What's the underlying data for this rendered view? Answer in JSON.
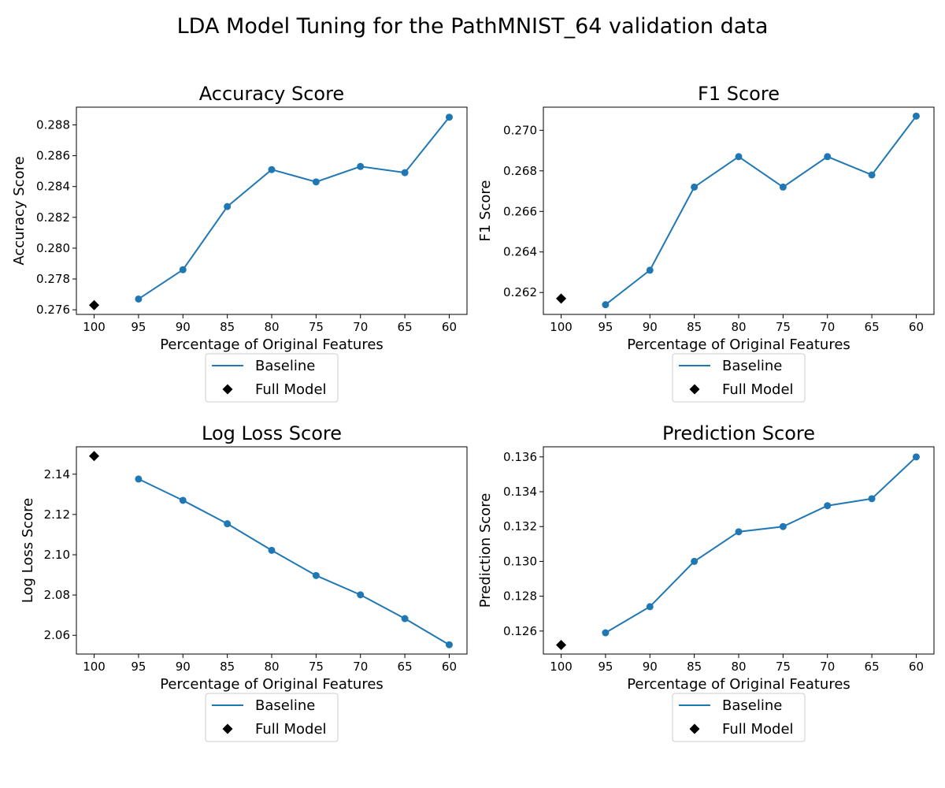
{
  "figure": {
    "title": "LDA Model Tuning for the PathMNIST_64 validation data"
  },
  "legend": {
    "baseline_label": "Baseline",
    "full_label": "Full Model"
  },
  "colors": {
    "baseline": "#1f77b4",
    "full_model": "#000000"
  },
  "chart_data": [
    {
      "type": "line",
      "title": "Accuracy Score",
      "xlabel": "Percentage of Original Features",
      "ylabel": "Accuracy Score",
      "x_ticks": [
        "100",
        "95",
        "90",
        "85",
        "80",
        "75",
        "70",
        "65",
        "60"
      ],
      "y_ticks": [
        "0.276",
        "0.278",
        "0.280",
        "0.282",
        "0.284",
        "0.286",
        "0.288"
      ],
      "ylim": [
        0.2757,
        0.28915
      ],
      "series": [
        {
          "name": "Baseline",
          "x": [
            95,
            90,
            85,
            80,
            75,
            70,
            65,
            60
          ],
          "values": [
            0.2767,
            0.2786,
            0.2827,
            0.2851,
            0.2843,
            0.2853,
            0.2849,
            0.2885
          ]
        },
        {
          "name": "Full Model",
          "x": [
            100
          ],
          "values": [
            0.2763
          ]
        }
      ],
      "legend_position": "below"
    },
    {
      "type": "line",
      "title": "F1 Score",
      "xlabel": "Percentage of Original Features",
      "ylabel": "F1 Score",
      "x_ticks": [
        "100",
        "95",
        "90",
        "85",
        "80",
        "75",
        "70",
        "65",
        "60"
      ],
      "y_ticks": [
        "0.262",
        "0.264",
        "0.266",
        "0.268",
        "0.270"
      ],
      "ylim": [
        0.26092,
        0.27114
      ],
      "series": [
        {
          "name": "Baseline",
          "x": [
            95,
            90,
            85,
            80,
            75,
            70,
            65,
            60
          ],
          "values": [
            0.2614,
            0.2631,
            0.2672,
            0.2687,
            0.2672,
            0.2687,
            0.2678,
            0.2707
          ]
        },
        {
          "name": "Full Model",
          "x": [
            100
          ],
          "values": [
            0.2617
          ]
        }
      ],
      "legend_position": "below"
    },
    {
      "type": "line",
      "title": "Log Loss Score",
      "xlabel": "Percentage of Original Features",
      "ylabel": "Log Loss Score",
      "x_ticks": [
        "100",
        "95",
        "90",
        "85",
        "80",
        "75",
        "70",
        "65",
        "60"
      ],
      "y_ticks": [
        "2.06",
        "2.08",
        "2.10",
        "2.12",
        "2.14"
      ],
      "ylim": [
        2.0507,
        2.1536
      ],
      "series": [
        {
          "name": "Baseline",
          "x": [
            95,
            90,
            85,
            80,
            75,
            70,
            65,
            60
          ],
          "values": [
            2.1376,
            2.127,
            2.1154,
            2.1022,
            2.0897,
            2.0801,
            2.0683,
            2.0553
          ]
        },
        {
          "name": "Full Model",
          "x": [
            100
          ],
          "values": [
            2.149
          ]
        }
      ],
      "legend_position": "below"
    },
    {
      "type": "line",
      "title": "Prediction Score",
      "xlabel": "Percentage of Original Features",
      "ylabel": "Prediction Score",
      "x_ticks": [
        "100",
        "95",
        "90",
        "85",
        "80",
        "75",
        "70",
        "65",
        "60"
      ],
      "y_ticks": [
        "0.126",
        "0.128",
        "0.130",
        "0.132",
        "0.134",
        "0.136"
      ],
      "ylim": [
        0.12468,
        0.13658
      ],
      "series": [
        {
          "name": "Baseline",
          "x": [
            95,
            90,
            85,
            80,
            75,
            70,
            65,
            60
          ],
          "values": [
            0.1259,
            0.1274,
            0.13,
            0.1317,
            0.132,
            0.1332,
            0.1336,
            0.136
          ]
        },
        {
          "name": "Full Model",
          "x": [
            100
          ],
          "values": [
            0.1252
          ]
        }
      ],
      "legend_position": "below"
    }
  ]
}
